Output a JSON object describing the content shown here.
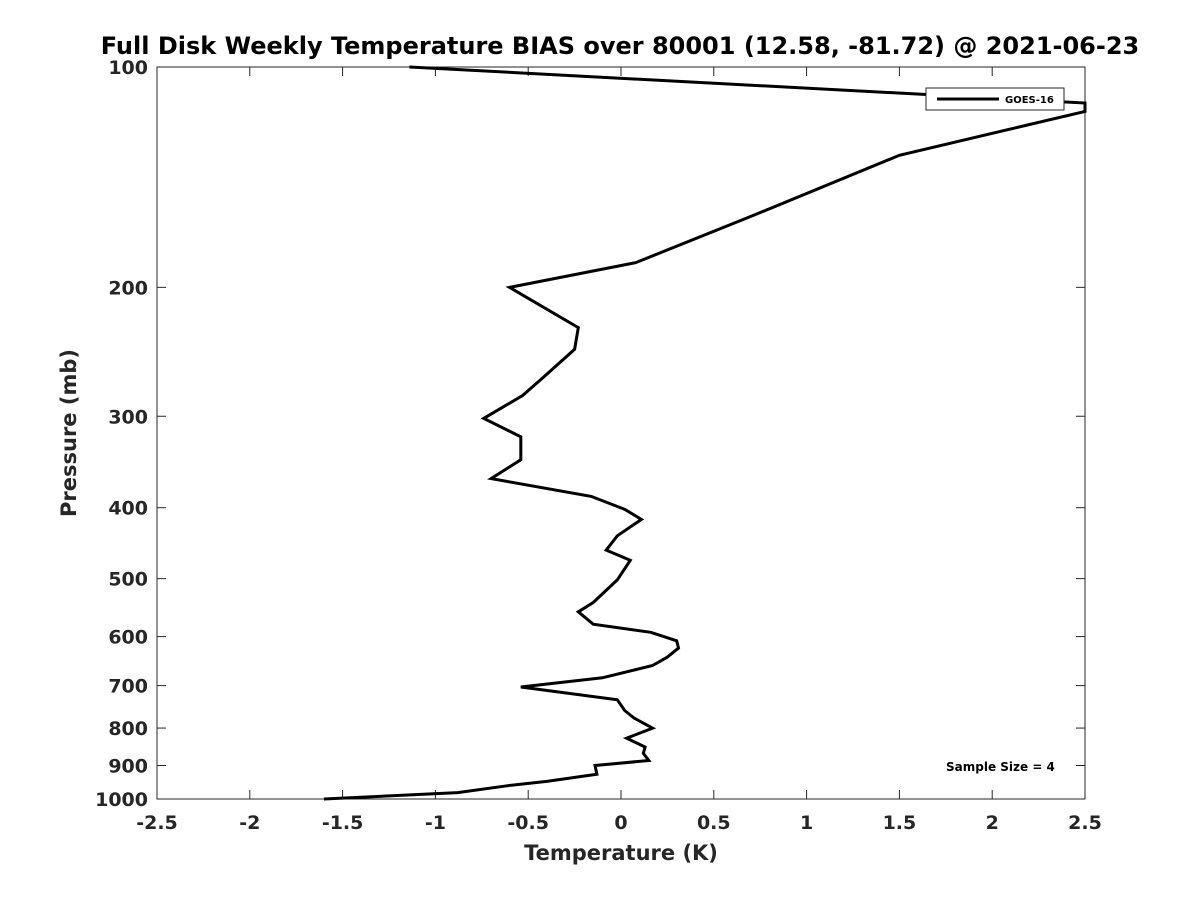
{
  "chart_data": {
    "type": "line",
    "title": "Full Disk Weekly Temperature BIAS over 80001 (12.58, -81.72) @ 2021-06-23",
    "xlabel": "Temperature (K)",
    "ylabel": "Pressure (mb)",
    "xlim": [
      -2.5,
      2.5
    ],
    "ylim": [
      1000,
      100
    ],
    "yscale": "log",
    "y_reversed": true,
    "grid": false,
    "legend_position": "top-right",
    "xticks": [
      -2.5,
      -2,
      -1.5,
      -1,
      -0.5,
      0,
      0.5,
      1,
      1.5,
      2,
      2.5
    ],
    "xtick_labels": [
      "-2.5",
      "-2",
      "-1.5",
      "-1",
      "-0.5",
      "0",
      "0.5",
      "1",
      "1.5",
      "2",
      "2.5"
    ],
    "yticks": [
      100,
      200,
      300,
      400,
      500,
      600,
      700,
      800,
      900,
      1000
    ],
    "ytick_labels": [
      "100",
      "200",
      "300",
      "400",
      "500",
      "600",
      "700",
      "800",
      "900",
      "1000"
    ],
    "series": [
      {
        "name": "GOES-16",
        "color": "#000000",
        "x": [
          -1.14,
          2.5,
          2.5,
          1.5,
          0.7,
          0.08,
          -0.6,
          -0.23,
          -0.25,
          -0.43,
          -0.53,
          -0.74,
          -0.54,
          -0.54,
          -0.7,
          -0.16,
          0.02,
          0.11,
          -0.02,
          -0.08,
          0.05,
          -0.02,
          -0.15,
          -0.23,
          -0.15,
          0.16,
          0.3,
          0.31,
          0.25,
          0.17,
          -0.1,
          -0.54,
          -0.02,
          0.02,
          0.07,
          0.17,
          0.03,
          0.13,
          0.12,
          0.15,
          -0.14,
          -0.13,
          -0.4,
          -0.61,
          -0.88,
          -1.6
        ],
        "y": [
          100,
          112,
          115,
          132,
          160,
          185,
          200,
          227,
          243,
          267,
          281,
          302,
          320,
          344,
          365,
          386,
          402,
          415,
          437,
          457,
          472,
          502,
          539,
          555,
          577,
          592,
          608,
          622,
          640,
          657,
          683,
          703,
          732,
          757,
          775,
          800,
          826,
          849,
          866,
          886,
          900,
          925,
          946,
          959,
          980,
          1000
        ]
      }
    ],
    "annotations": [
      "Sample Size = 4"
    ]
  }
}
